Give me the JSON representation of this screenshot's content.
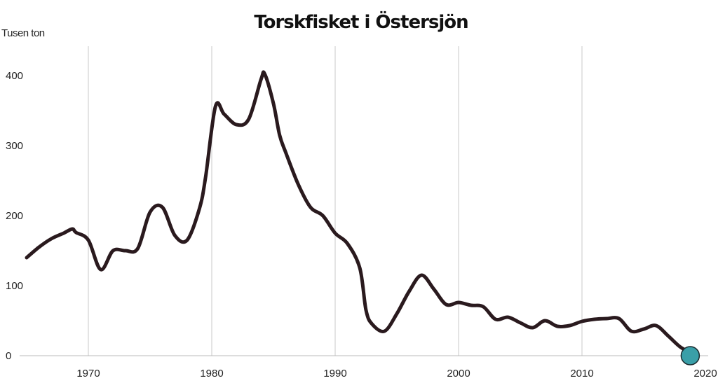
{
  "chart_data": {
    "type": "line",
    "title": "Torskfisket i Östersjön",
    "ylabel": "Tusen ton",
    "xlabel": "",
    "xlim": [
      1965,
      2020
    ],
    "ylim": [
      0,
      400
    ],
    "x_ticks": [
      "1970",
      "1980",
      "1990",
      "2000",
      "2010",
      "2020"
    ],
    "y_ticks": [
      "0",
      "100",
      "200",
      "300",
      "400"
    ],
    "grid": "vertical",
    "line_color": "#2a1a1e",
    "marker_color": "#3a9fa8",
    "x": [
      1965,
      1966,
      1967,
      1968,
      1968.7,
      1969,
      1970,
      1971,
      1972,
      1973,
      1974,
      1975,
      1976,
      1977,
      1978,
      1979,
      1979.5,
      1980.3,
      1981,
      1982,
      1983,
      1984,
      1984.3,
      1985,
      1985.5,
      1986,
      1987,
      1988,
      1989,
      1990,
      1991,
      1992,
      1992.5,
      1993,
      1994,
      1995,
      1996,
      1997,
      1998,
      1999,
      2000,
      2001,
      2002,
      2003,
      2004,
      2005,
      2006,
      2007,
      2008,
      2009,
      2010,
      2011,
      2012,
      2013,
      2014,
      2015,
      2016,
      2017,
      2018,
      2019
    ],
    "values": [
      140,
      155,
      167,
      175,
      181,
      176,
      165,
      123,
      150,
      150,
      153,
      205,
      212,
      172,
      165,
      210,
      255,
      356,
      345,
      330,
      338,
      395,
      402,
      360,
      315,
      290,
      245,
      212,
      200,
      175,
      160,
      125,
      65,
      45,
      35,
      60,
      92,
      115,
      95,
      73,
      76,
      72,
      70,
      52,
      55,
      47,
      40,
      50,
      42,
      43,
      49,
      52,
      53,
      53,
      35,
      38,
      43,
      28,
      12,
      3
    ],
    "highlight_point": {
      "x": 2019,
      "value": 3
    }
  }
}
